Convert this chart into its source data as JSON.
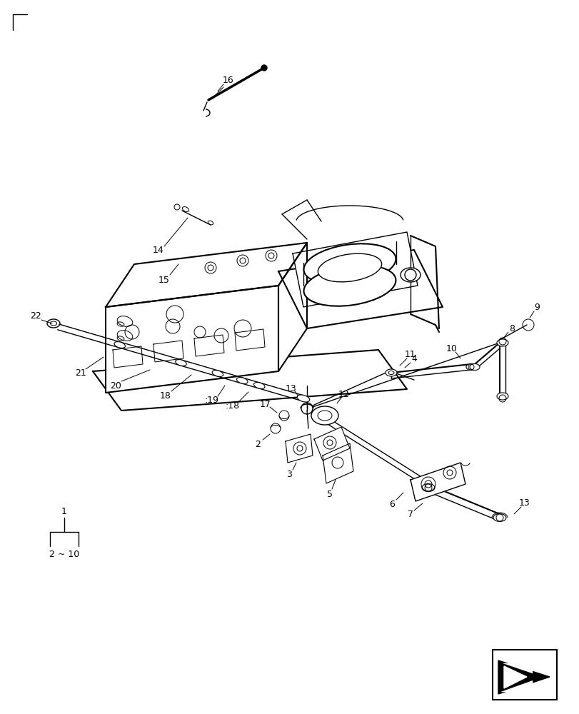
{
  "bg_color": "#ffffff",
  "line_color": "#000000",
  "fig_width": 8.12,
  "fig_height": 10.0,
  "dpi": 100
}
